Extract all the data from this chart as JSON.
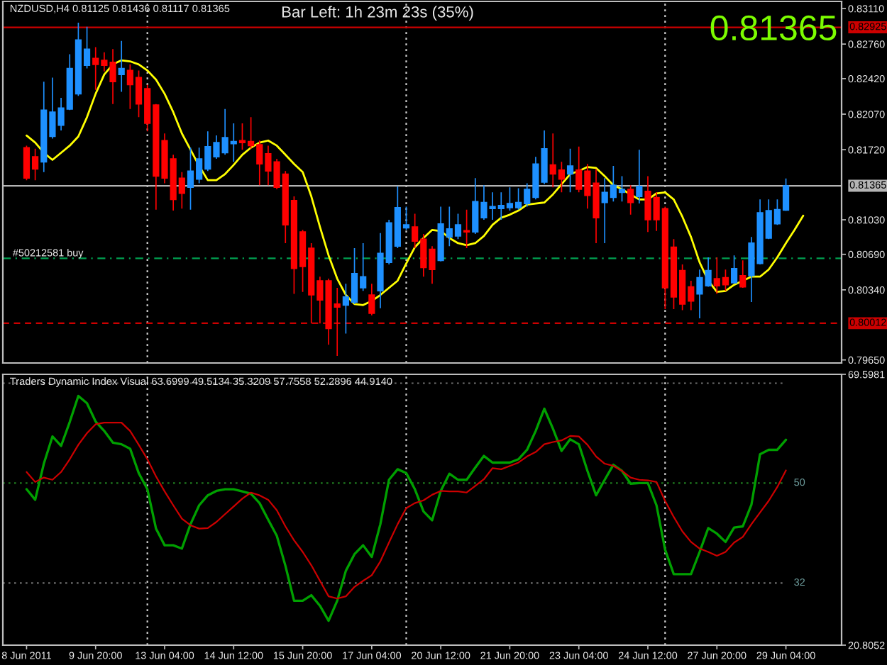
{
  "chart_data": [
    {
      "type": "candlestick",
      "title": "NZDUSD,H4 0.81125 0.81436 0.81117 0.81365",
      "categories": [
        null,
        null,
        null,
        null,
        null,
        null,
        null,
        null,
        null,
        null,
        null,
        null,
        null,
        null,
        null,
        null,
        null,
        null,
        null,
        null,
        null,
        null,
        null,
        null,
        null,
        null,
        null,
        null,
        null,
        null,
        null,
        null,
        null,
        null,
        null,
        null,
        null,
        null,
        null,
        null,
        null,
        null,
        null,
        null,
        null,
        null,
        null,
        null,
        null,
        null,
        null,
        null,
        null,
        null,
        null,
        null,
        null,
        null,
        null,
        null,
        null,
        null,
        null,
        null,
        null,
        null,
        null,
        null,
        null,
        null,
        null,
        null,
        null,
        null,
        null,
        null,
        null,
        null,
        null,
        null,
        null,
        null,
        null,
        null,
        null,
        null,
        null,
        null,
        null,
        null,
        null
      ],
      "ohlc": [
        [
          0.8174,
          0.8176,
          0.8142,
          0.8144
        ],
        [
          0.8165,
          0.8173,
          0.8142,
          0.8153
        ],
        [
          0.816,
          0.8239,
          0.815,
          0.8211
        ],
        [
          0.8185,
          0.8243,
          0.8183,
          0.8209
        ],
        [
          0.8196,
          0.8223,
          0.8191,
          0.8213
        ],
        [
          0.8212,
          0.8266,
          0.8211,
          0.8252
        ],
        [
          0.8227,
          0.8297,
          0.8225,
          0.828
        ],
        [
          0.8255,
          0.8293,
          0.8252,
          0.8271
        ],
        [
          0.8262,
          0.8273,
          0.8231,
          0.8256
        ],
        [
          0.826,
          0.8268,
          0.8249,
          0.8255
        ],
        [
          0.8258,
          0.8271,
          0.8217,
          0.8239
        ],
        [
          0.8246,
          0.8279,
          0.8229,
          0.8252
        ],
        [
          0.825,
          0.8256,
          0.8212,
          0.8236
        ],
        [
          0.8243,
          0.825,
          0.8204,
          0.8217
        ],
        [
          0.8232,
          0.8236,
          0.819,
          0.8198
        ],
        [
          0.8216,
          0.8217,
          0.8113,
          0.8146
        ],
        [
          0.8181,
          0.8188,
          0.8139,
          0.8144
        ],
        [
          0.8163,
          0.8167,
          0.8112,
          0.8123
        ],
        [
          0.8144,
          0.815,
          0.8114,
          0.8129
        ],
        [
          0.8135,
          0.8174,
          0.8113,
          0.8151
        ],
        [
          0.8143,
          0.8174,
          0.8139,
          0.8163
        ],
        [
          0.8153,
          0.819,
          0.8151,
          0.8175
        ],
        [
          0.8165,
          0.8186,
          0.8163,
          0.8179
        ],
        [
          0.8169,
          0.8212,
          0.8167,
          0.8184
        ],
        [
          0.8178,
          0.8198,
          0.816,
          0.818
        ],
        [
          0.8181,
          0.8198,
          0.8172,
          0.8179
        ],
        [
          0.818,
          0.8204,
          0.8173,
          0.8176
        ],
        [
          0.8177,
          0.8181,
          0.8137,
          0.8158
        ],
        [
          0.8168,
          0.8176,
          0.8137,
          0.8151
        ],
        [
          0.816,
          0.8163,
          0.8133,
          0.8135
        ],
        [
          0.8148,
          0.8151,
          0.808,
          0.8098
        ],
        [
          0.8122,
          0.8126,
          0.803,
          0.8055
        ],
        [
          0.8091,
          0.8093,
          0.8032,
          0.8057
        ],
        [
          0.8075,
          0.808,
          0.8001,
          0.8029
        ],
        [
          0.8043,
          0.8047,
          0.8001,
          0.8024
        ],
        [
          0.8043,
          0.8045,
          0.798,
          0.7996
        ],
        [
          0.802,
          0.8036,
          0.7969,
          0.8017
        ],
        [
          0.8019,
          0.804,
          0.7991,
          0.8027
        ],
        [
          0.8022,
          0.8075,
          0.802,
          0.805
        ],
        [
          0.8036,
          0.808,
          0.8033,
          0.8047
        ],
        [
          0.8029,
          0.804,
          0.8009,
          0.8011
        ],
        [
          0.8033,
          0.809,
          0.8016,
          0.807
        ],
        [
          0.8061,
          0.8103,
          0.8059,
          0.81
        ],
        [
          0.8077,
          0.8136,
          0.8075,
          0.8115
        ],
        [
          0.8095,
          0.8116,
          0.8093,
          0.8098
        ],
        [
          0.8096,
          0.8109,
          0.8075,
          0.8082
        ],
        [
          0.8084,
          0.8089,
          0.8047,
          0.8056
        ],
        [
          0.8074,
          0.8077,
          0.804,
          0.8054
        ],
        [
          0.8063,
          0.8116,
          0.8062,
          0.8099
        ],
        [
          0.8086,
          0.8116,
          0.8077,
          0.8094
        ],
        [
          0.8087,
          0.8109,
          0.8084,
          0.8098
        ],
        [
          0.8092,
          0.8113,
          0.8075,
          0.8091
        ],
        [
          0.8091,
          0.8144,
          0.8089,
          0.8121
        ],
        [
          0.8105,
          0.8137,
          0.8103,
          0.812
        ],
        [
          0.8114,
          0.813,
          0.8103,
          0.8116
        ],
        [
          0.8114,
          0.813,
          0.8103,
          0.8117
        ],
        [
          0.8115,
          0.8135,
          0.8112,
          0.8119
        ],
        [
          0.8115,
          0.8134,
          0.8113,
          0.812
        ],
        [
          0.8119,
          0.8139,
          0.8116,
          0.8133
        ],
        [
          0.8125,
          0.8165,
          0.8123,
          0.8158
        ],
        [
          0.814,
          0.8191,
          0.8138,
          0.8173
        ],
        [
          0.8157,
          0.8188,
          0.8135,
          0.8148
        ],
        [
          0.8152,
          0.816,
          0.813,
          0.8143
        ],
        [
          0.8148,
          0.8173,
          0.813,
          0.8156
        ],
        [
          0.8152,
          0.8175,
          0.813,
          0.8133
        ],
        [
          0.8151,
          0.8158,
          0.8114,
          0.8127
        ],
        [
          0.8139,
          0.8153,
          0.808,
          0.8105
        ],
        [
          0.812,
          0.8144,
          0.808,
          0.813
        ],
        [
          0.8125,
          0.8156,
          0.8121,
          0.8137
        ],
        [
          0.813,
          0.8146,
          0.8121,
          0.8133
        ],
        [
          0.8133,
          0.8137,
          0.8108,
          0.812
        ],
        [
          0.8126,
          0.8172,
          0.8119,
          0.8136
        ],
        [
          0.8131,
          0.8146,
          0.8091,
          0.8103
        ],
        [
          0.8125,
          0.813,
          0.8092,
          0.8103
        ],
        [
          0.8114,
          0.8116,
          0.8015,
          0.8036
        ],
        [
          0.8076,
          0.8084,
          0.8015,
          0.8027
        ],
        [
          0.8053,
          0.8059,
          0.8014,
          0.802
        ],
        [
          0.8037,
          0.8043,
          0.8014,
          0.8023
        ],
        [
          0.803,
          0.8054,
          0.8006,
          0.8046
        ],
        [
          0.8038,
          0.8066,
          0.8037,
          0.8053
        ],
        [
          0.8045,
          0.8066,
          0.803,
          0.8038
        ],
        [
          0.8046,
          0.8054,
          0.8033,
          0.8039
        ],
        [
          0.8041,
          0.8068,
          0.804,
          0.8055
        ],
        [
          0.8048,
          0.8063,
          0.8036,
          0.8037
        ],
        [
          0.8048,
          0.8086,
          0.8022,
          0.808
        ],
        [
          0.806,
          0.8123,
          0.8059,
          0.811
        ],
        [
          0.8085,
          0.8123,
          0.8084,
          0.8112
        ],
        [
          0.8099,
          0.8123,
          0.8098,
          0.8113
        ],
        [
          0.81125,
          0.81436,
          0.81117,
          0.81365
        ],
        null,
        null
      ],
      "colors": [
        "#ff0000",
        "#ff0000",
        "#1e90ff",
        "#1e90ff",
        "#1e90ff",
        "#1e90ff",
        "#1e90ff",
        "#1e90ff",
        "#ff0000",
        "#ff0000",
        "#ff0000",
        "#1e90ff",
        "#ff0000",
        "#ff0000",
        "#ff0000",
        "#ff0000",
        "#ff0000",
        "#ff0000",
        "#ff0000",
        "#1e90ff",
        "#1e90ff",
        "#1e90ff",
        "#1e90ff",
        "#1e90ff",
        "#1e90ff",
        "#ff0000",
        "#ff0000",
        "#ff0000",
        "#ff0000",
        "#ff0000",
        "#ff0000",
        "#ff0000",
        "#ff0000",
        "#ff0000",
        "#ff0000",
        "#ff0000",
        "#ff0000",
        "#1e90ff",
        "#1e90ff",
        "#1e90ff",
        "#ff0000",
        "#1e90ff",
        "#1e90ff",
        "#1e90ff",
        "#1e90ff",
        "#ff0000",
        "#ff0000",
        "#ff0000",
        "#1e90ff",
        "#1e90ff",
        "#1e90ff",
        "#ff0000",
        "#1e90ff",
        "#1e90ff",
        "#1e90ff",
        "#1e90ff",
        "#1e90ff",
        "#1e90ff",
        "#1e90ff",
        "#1e90ff",
        "#1e90ff",
        "#ff0000",
        "#ff0000",
        "#1e90ff",
        "#ff0000",
        "#ff0000",
        "#ff0000",
        "#1e90ff",
        "#1e90ff",
        "#1e90ff",
        "#ff0000",
        "#1e90ff",
        "#ff0000",
        "#ff0000",
        "#ff0000",
        "#ff0000",
        "#ff0000",
        "#ff0000",
        "#1e90ff",
        "#1e90ff",
        "#ff0000",
        "#ff0000",
        "#1e90ff",
        "#ff0000",
        "#1e90ff",
        "#1e90ff",
        "#1e90ff",
        "#1e90ff",
        "#1e90ff",
        null,
        null
      ],
      "series": [
        {
          "type": "line",
          "color": "#ffff00",
          "values": [
            0.8186,
            0.8179,
            0.8169,
            0.8162,
            0.8169,
            0.8176,
            0.8185,
            0.8204,
            0.8227,
            0.8246,
            0.8256,
            0.826,
            0.8259,
            0.8256,
            0.825,
            0.8241,
            0.8227,
            0.8209,
            0.8188,
            0.8172,
            0.8156,
            0.8142,
            0.8142,
            0.8148,
            0.8157,
            0.8167,
            0.8174,
            0.8179,
            0.8181,
            0.8176,
            0.8167,
            0.8158,
            0.815,
            0.8126,
            0.8096,
            0.8068,
            0.8045,
            0.8029,
            0.802,
            0.8019,
            0.8023,
            0.8029,
            0.8036,
            0.8043,
            0.806,
            0.8076,
            0.8085,
            0.8093,
            0.8092,
            0.8085,
            0.808,
            0.8078,
            0.808,
            0.8087,
            0.8098,
            0.8105,
            0.8108,
            0.8112,
            0.8118,
            0.8119,
            0.812,
            0.8128,
            0.8138,
            0.8148,
            0.8151,
            0.8155,
            0.8154,
            0.8146,
            0.8137,
            0.8133,
            0.8128,
            0.8123,
            0.8123,
            0.8129,
            0.813,
            0.8123,
            0.8106,
            0.8086,
            0.8061,
            0.8043,
            0.8032,
            0.8033,
            0.8039,
            0.8043,
            0.8047,
            0.8047,
            0.8054,
            0.8066,
            0.808,
            0.8093,
            0.8107
          ]
        }
      ],
      "ylim": [
        0.7962,
        0.8318
      ],
      "yticks": [
        {
          "value": 0.8311,
          "label": "0.83110"
        },
        {
          "value": 0.8276,
          "label": "0.82760"
        },
        {
          "value": 0.8242,
          "label": "0.82420"
        },
        {
          "value": 0.8207,
          "label": "0.82070"
        },
        {
          "value": 0.8172,
          "label": "0.81720"
        },
        {
          "value": 0.8103,
          "label": "0.81030"
        },
        {
          "value": 0.8069,
          "label": "0.80690"
        },
        {
          "value": 0.8034,
          "label": "0.80340"
        },
        {
          "value": 0.7965,
          "label": "0.79650"
        }
      ],
      "ref_lines": [
        {
          "axis": "y",
          "value": 0.82925,
          "label": "0.82925",
          "color": "#cc0000",
          "line_style": "solid"
        },
        {
          "axis": "y",
          "value": 0.80012,
          "label": "0.80012",
          "color": "#cc0000",
          "line_style": "dashed"
        },
        {
          "axis": "y",
          "value": 0.81365,
          "label": "0.81365",
          "color": "#b4b4b4",
          "line_style": "solid"
        },
        {
          "axis": "y",
          "value": 0.8065,
          "label": "#50212581 buy",
          "color": "#00a050",
          "line_style": "dashdot"
        }
      ],
      "annotations": [
        "Bar Left: 1h 23m 23s (35%)",
        "0.81365"
      ],
      "grid": "x"
    },
    {
      "type": "line",
      "title": "Traders Dynamic Index Visual 63.6999 49.5134 35.3209 57.7558 52.2896 44.9140",
      "categories": [
        "8 Jun 2011",
        null,
        null,
        null,
        null,
        null,
        null,
        null,
        "9 Jun 20:00",
        null,
        null,
        null,
        null,
        null,
        null,
        null,
        "13 Jun 04:00",
        null,
        null,
        null,
        null,
        null,
        null,
        null,
        "14 Jun 12:00",
        null,
        null,
        null,
        null,
        null,
        null,
        null,
        "15 Jun 20:00",
        null,
        null,
        null,
        null,
        null,
        null,
        null,
        "17 Jun 04:00",
        null,
        null,
        null,
        null,
        null,
        null,
        null,
        "20 Jun 12:00",
        null,
        null,
        null,
        null,
        null,
        null,
        null,
        "21 Jun 20:00",
        null,
        null,
        null,
        null,
        null,
        null,
        null,
        "23 Jun 04:00",
        null,
        null,
        null,
        null,
        null,
        null,
        null,
        "24 Jun 12:00",
        null,
        null,
        null,
        null,
        null,
        null,
        null,
        "27 Jun 20:00",
        null,
        null,
        null,
        null,
        null,
        null,
        null,
        "29 Jun 04:00",
        null,
        null
      ],
      "series": [
        {
          "color": "#00a000",
          "values": [
            48.9,
            47.0,
            53.5,
            58.4,
            56.7,
            61.0,
            65.7,
            64.4,
            61.1,
            59.4,
            57.3,
            57.0,
            56.2,
            51.8,
            48.9,
            41.8,
            38.8,
            38.8,
            38.2,
            42.6,
            46.0,
            47.8,
            48.6,
            48.9,
            48.9,
            48.5,
            48.1,
            46.4,
            43.4,
            40.5,
            35.1,
            28.8,
            28.8,
            29.8,
            27.9,
            25.2,
            28.8,
            34.2,
            37.2,
            38.8,
            36.7,
            42.6,
            50.6,
            52.5,
            51.8,
            48.9,
            44.9,
            43.3,
            48.6,
            51.7,
            50.6,
            50.6,
            52.8,
            54.9,
            53.7,
            53.7,
            53.7,
            54.3,
            56.0,
            59.4,
            63.4,
            59.8,
            55.8,
            57.9,
            57.0,
            52.2,
            47.8,
            50.6,
            53.3,
            52.2,
            49.9,
            50.0,
            50.0,
            46.0,
            38.0,
            33.6,
            33.6,
            33.6,
            37.6,
            41.9,
            40.9,
            39.4,
            42.0,
            42.2,
            46.1,
            55.2,
            56.0,
            56.0,
            57.8,
            null,
            null
          ]
        },
        {
          "color": "#cc0000",
          "values": [
            52.0,
            50.2,
            51.0,
            50.6,
            52.0,
            54.3,
            56.9,
            59.0,
            60.6,
            60.9,
            60.9,
            60.9,
            59.4,
            56.9,
            54.3,
            51.2,
            48.5,
            46.0,
            43.6,
            42.4,
            41.8,
            41.9,
            43.0,
            44.4,
            45.8,
            47.2,
            48.3,
            47.8,
            47.0,
            45.1,
            42.2,
            39.7,
            37.6,
            35.2,
            32.4,
            29.6,
            29.2,
            29.6,
            31.3,
            32.4,
            33.4,
            35.9,
            39.3,
            42.6,
            45.5,
            46.4,
            46.9,
            47.9,
            48.6,
            48.5,
            48.5,
            48.3,
            49.5,
            50.7,
            52.7,
            52.5,
            53.1,
            53.7,
            54.8,
            55.6,
            57.0,
            57.4,
            57.7,
            58.5,
            58.4,
            56.9,
            54.8,
            53.5,
            53.1,
            52.2,
            51.0,
            50.6,
            50.5,
            50.2,
            46.8,
            43.9,
            41.3,
            39.4,
            38.2,
            37.6,
            36.9,
            37.6,
            39.3,
            40.3,
            42.6,
            44.7,
            46.8,
            49.3,
            52.3,
            null,
            null
          ]
        }
      ],
      "ylim": [
        20.8052,
        69.5981
      ],
      "yticks": [
        69.5981,
        20.8052
      ],
      "ref_lines": [
        {
          "axis": "y",
          "value": 68,
          "color": "#6e6e6e",
          "line_style": "dotted"
        },
        {
          "axis": "y",
          "value": 50,
          "label": "50",
          "color": "#1f7a1f",
          "line_style": "dotted"
        },
        {
          "axis": "y",
          "value": 32,
          "label": "32",
          "color": "#6e6e6e",
          "line_style": "dotted"
        }
      ],
      "grid": "x"
    }
  ]
}
